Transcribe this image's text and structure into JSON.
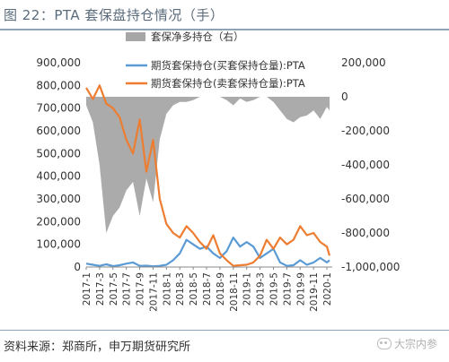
{
  "header": {
    "title": "图 22：PTA 套保盘持仓情况（手）"
  },
  "footer": {
    "source": "资料来源：郑商所，申万期货研究所",
    "watermark": "大宗内参"
  },
  "chart_data": {
    "type": "line",
    "legend_position": "top-center",
    "x_labels": [
      "2017-1",
      "2017-3",
      "2017-5",
      "2017-7",
      "2017-9",
      "2017-11",
      "2018-1",
      "2018-3",
      "2018-5",
      "2018-7",
      "2018-9",
      "2018-11",
      "2019-1",
      "2019-3",
      "2019-5",
      "2019-7",
      "2019-9",
      "2019-11",
      "2020-1"
    ],
    "left_axis": {
      "range": [
        0,
        900000
      ],
      "ticks": [
        "0",
        "100,000",
        "200,000",
        "300,000",
        "400,000",
        "500,000",
        "600,000",
        "700,000",
        "800,000",
        "900,000"
      ]
    },
    "right_axis": {
      "range": [
        -1000000,
        200000
      ],
      "ticks": [
        "-1,000,000",
        "-800,000",
        "-600,000",
        "-400,000",
        "-200,000",
        "0",
        "200,000"
      ]
    },
    "series": [
      {
        "name": "套保净多持仓（右）",
        "kind": "area",
        "axis": "right",
        "color": "#a6a6a6",
        "x": [
          0,
          0.5,
          1,
          1.5,
          2,
          2.5,
          3,
          3.5,
          4,
          4.5,
          5,
          5.5,
          6,
          6.5,
          7,
          7.5,
          8,
          8.5,
          9,
          9.5,
          10,
          10.5,
          11,
          11.5,
          12,
          12.5,
          13,
          13.5,
          14,
          14.5,
          15,
          15.5,
          16,
          16.5,
          17,
          17.5,
          18,
          18.2
        ],
        "y": [
          -50000,
          -150000,
          -400000,
          -800000,
          -700000,
          -650000,
          -550000,
          -500000,
          -700000,
          -480000,
          -620000,
          -250000,
          -100000,
          -50000,
          -30000,
          -30000,
          -20000,
          0,
          0,
          0,
          0,
          -20000,
          -50000,
          -10000,
          -30000,
          -20000,
          0,
          0,
          -30000,
          -80000,
          -130000,
          -150000,
          -120000,
          -110000,
          -80000,
          -130000,
          -60000,
          -80000
        ]
      },
      {
        "name": "期货套保持仓(买套保持仓量):PTA",
        "kind": "line",
        "axis": "left",
        "color": "#5b9bd5",
        "x": [
          0,
          0.5,
          1,
          1.5,
          2,
          2.5,
          3,
          3.5,
          4,
          4.5,
          5,
          5.5,
          6,
          6.5,
          7,
          7.5,
          8,
          8.5,
          9,
          9.5,
          10,
          10.5,
          11,
          11.5,
          12,
          12.5,
          13,
          13.5,
          14,
          14.5,
          15,
          15.5,
          16,
          16.5,
          17,
          17.5,
          18,
          18.2
        ],
        "y": [
          15000,
          10000,
          5000,
          12000,
          4000,
          8000,
          15000,
          20000,
          5000,
          6000,
          3000,
          5000,
          10000,
          30000,
          60000,
          120000,
          100000,
          80000,
          90000,
          60000,
          40000,
          70000,
          130000,
          90000,
          110000,
          90000,
          40000,
          60000,
          80000,
          20000,
          5000,
          8000,
          30000,
          10000,
          20000,
          40000,
          20000,
          30000
        ]
      },
      {
        "name": "期货套保持仓(卖套保持仓量):PTA",
        "kind": "line",
        "axis": "left",
        "color": "#ed7d31",
        "x": [
          0,
          0.5,
          1,
          1.5,
          2,
          2.5,
          3,
          3.5,
          4,
          4.5,
          5,
          5.5,
          6,
          6.5,
          7,
          7.5,
          8,
          8.5,
          9,
          9.5,
          10,
          10.5,
          11,
          11.5,
          12,
          12.5,
          13,
          13.5,
          14,
          14.5,
          15,
          15.5,
          16,
          16.5,
          17,
          17.5,
          18,
          18.2
        ],
        "y": [
          790000,
          740000,
          800000,
          720000,
          700000,
          660000,
          560000,
          500000,
          650000,
          420000,
          560000,
          300000,
          190000,
          150000,
          130000,
          180000,
          150000,
          110000,
          80000,
          140000,
          60000,
          30000,
          5000,
          8000,
          10000,
          20000,
          50000,
          120000,
          80000,
          130000,
          100000,
          120000,
          180000,
          140000,
          150000,
          110000,
          90000,
          50000
        ]
      }
    ]
  }
}
